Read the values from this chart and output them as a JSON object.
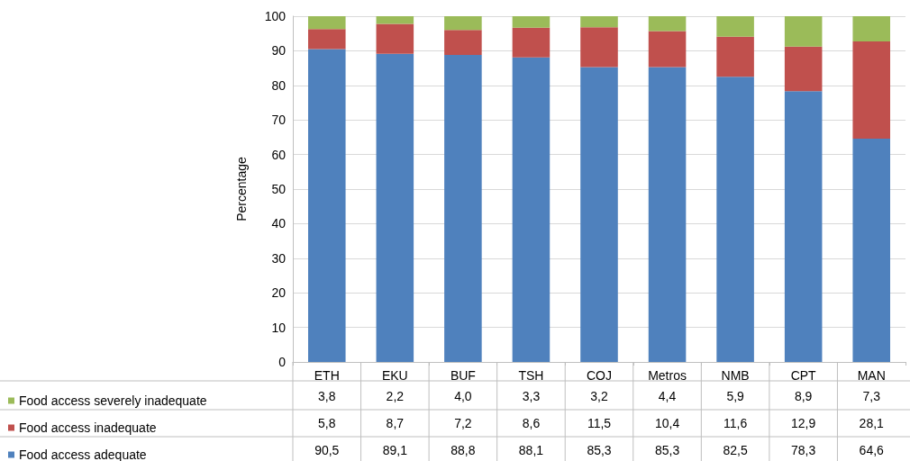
{
  "chart_data": {
    "type": "bar",
    "stacked": true,
    "ylabel": "Percentage",
    "categories": [
      "ETH",
      "EKU",
      "BUF",
      "TSH",
      "COJ",
      "Metros",
      "NMB",
      "CPT",
      "MAN"
    ],
    "ylim": [
      0,
      100
    ],
    "yticks": [
      0,
      10,
      20,
      30,
      40,
      50,
      60,
      70,
      80,
      90,
      100
    ],
    "grid": "y",
    "legend": "bottom left",
    "series": [
      {
        "name": "Food access adequate",
        "color": "#4f81bd",
        "values": [
          90.5,
          89.1,
          88.8,
          88.1,
          85.3,
          85.3,
          82.5,
          78.3,
          64.6
        ],
        "value_labels": [
          "90,5",
          "89,1",
          "88,8",
          "88,1",
          "85,3",
          "85,3",
          "82,5",
          "78,3",
          "64,6"
        ]
      },
      {
        "name": "Food access inadequate",
        "color": "#c0504d",
        "values": [
          5.8,
          8.7,
          7.2,
          8.6,
          11.5,
          10.4,
          11.6,
          12.9,
          28.1
        ],
        "value_labels": [
          "5,8",
          "8,7",
          "7,2",
          "8,6",
          "11,5",
          "10,4",
          "11,6",
          "12,9",
          "28,1"
        ]
      },
      {
        "name": "Food access severely inadequate",
        "color": "#9bbb59",
        "values": [
          3.8,
          2.2,
          4.0,
          3.3,
          3.2,
          4.4,
          5.9,
          8.9,
          7.3
        ],
        "value_labels": [
          "3,8",
          "2,2",
          "4,0",
          "3,3",
          "3,2",
          "4,4",
          "5,9",
          "8,9",
          "7,3"
        ]
      }
    ]
  }
}
